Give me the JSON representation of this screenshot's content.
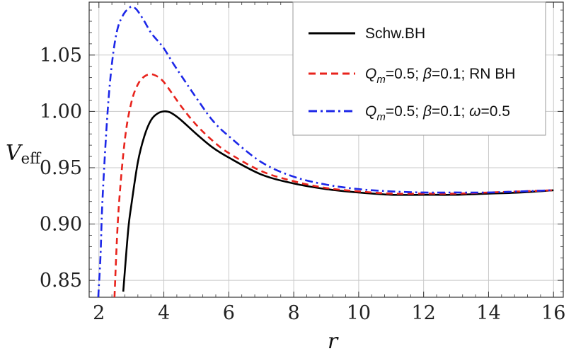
{
  "chart_data": {
    "type": "line",
    "xlabel": "r",
    "ylabel": {
      "main": "V",
      "sub": "eff"
    },
    "xlim": [
      1.7,
      16.3
    ],
    "ylim": [
      0.835,
      1.097
    ],
    "xticks": [
      2,
      4,
      6,
      8,
      10,
      12,
      14,
      16
    ],
    "yticks": [
      0.85,
      0.9,
      0.95,
      1.0,
      1.05
    ],
    "ytick_labels": [
      "0.85",
      "0.90",
      "0.95",
      "1.00",
      "1.05"
    ],
    "grid": true,
    "legend_position": "top-right",
    "series": [
      {
        "id": "schw",
        "name": "Schw.BH",
        "legend_parts": [
          {
            "text": "Schw.BH",
            "italic": false
          }
        ],
        "color": "#000000",
        "dash": "solid",
        "x": [
          2.75,
          2.9,
          3.0,
          3.2,
          3.4,
          3.6,
          3.8,
          4.0,
          4.2,
          4.5,
          5.0,
          5.5,
          6.0,
          7.0,
          8.0,
          9.0,
          10.0,
          11.0,
          12.0,
          13.0,
          14.0,
          15.0,
          16.0
        ],
        "y": [
          0.84,
          0.894,
          0.917,
          0.955,
          0.978,
          0.992,
          0.998,
          1.0,
          0.999,
          0.993,
          0.98,
          0.968,
          0.959,
          0.944,
          0.936,
          0.931,
          0.928,
          0.926,
          0.926,
          0.926,
          0.927,
          0.928,
          0.93
        ]
      },
      {
        "id": "rn",
        "name": "Q_m=0.5; β=0.1; RN BH",
        "legend_parts": [
          {
            "text": "Q",
            "italic": true
          },
          {
            "text": "m",
            "italic": true,
            "sub": true
          },
          {
            "text": "=0.5; ",
            "italic": false
          },
          {
            "text": "β",
            "italic": true
          },
          {
            "text": "=0.1; RN BH",
            "italic": false
          }
        ],
        "color": "#e8231c",
        "dash": "dashed",
        "x": [
          2.48,
          2.6,
          2.8,
          3.0,
          3.2,
          3.4,
          3.6,
          3.8,
          4.0,
          4.3,
          4.6,
          5.0,
          5.5,
          6.0,
          7.0,
          8.0,
          9.0,
          10.0,
          11.0,
          12.0,
          13.0,
          14.0,
          15.0,
          16.0
        ],
        "y": [
          0.835,
          0.91,
          0.975,
          1.008,
          1.024,
          1.031,
          1.033,
          1.031,
          1.026,
          1.014,
          1.002,
          0.988,
          0.974,
          0.963,
          0.947,
          0.938,
          0.932,
          0.929,
          0.927,
          0.927,
          0.927,
          0.928,
          0.929,
          0.93
        ]
      },
      {
        "id": "omega",
        "name": "Q_m=0.5; β=0.1; ω=0.5",
        "legend_parts": [
          {
            "text": "Q",
            "italic": true
          },
          {
            "text": "m",
            "italic": true,
            "sub": true
          },
          {
            "text": "=0.5; ",
            "italic": false
          },
          {
            "text": "β",
            "italic": true
          },
          {
            "text": "=0.1; ",
            "italic": false
          },
          {
            "text": "ω",
            "italic": true
          },
          {
            "text": "=0.5",
            "italic": false
          }
        ],
        "color": "#1c27e8",
        "dash": "dashdot",
        "x": [
          1.98,
          2.05,
          2.1,
          2.2,
          2.3,
          2.4,
          2.5,
          2.6,
          2.7,
          2.8,
          2.9,
          3.0,
          3.1,
          3.2,
          3.4,
          3.6,
          3.8,
          4.0,
          4.3,
          4.6,
          5.0,
          5.5,
          6.0,
          7.0,
          8.0,
          9.0,
          10.0,
          11.0,
          12.0,
          13.0,
          14.0,
          15.0,
          16.0
        ],
        "y": [
          0.835,
          0.872,
          0.915,
          0.969,
          1.012,
          1.042,
          1.063,
          1.076,
          1.083,
          1.088,
          1.091,
          1.093,
          1.092,
          1.089,
          1.08,
          1.07,
          1.063,
          1.056,
          1.042,
          1.029,
          1.012,
          0.992,
          0.978,
          0.955,
          0.942,
          0.935,
          0.931,
          0.929,
          0.928,
          0.928,
          0.928,
          0.929,
          0.93
        ]
      }
    ]
  }
}
